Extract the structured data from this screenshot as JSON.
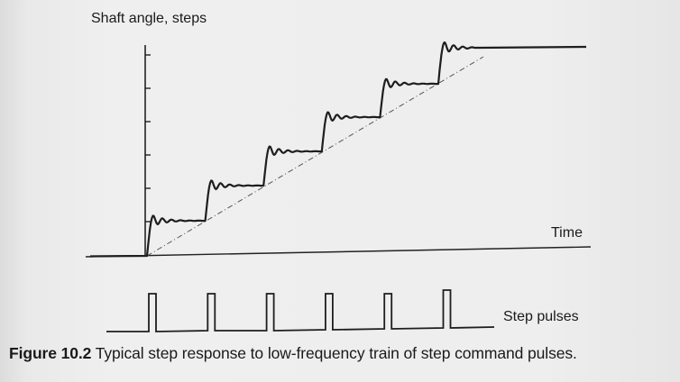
{
  "diagram": {
    "y_axis_label": "Shaft angle, steps",
    "x_axis_label": "Time",
    "pulse_label": "Step pulses",
    "step_count": 6,
    "y_axis_ticks": 6
  },
  "caption": {
    "number": "Figure 10.2",
    "text": "Typical step response to low-frequency train of step command pulses."
  }
}
